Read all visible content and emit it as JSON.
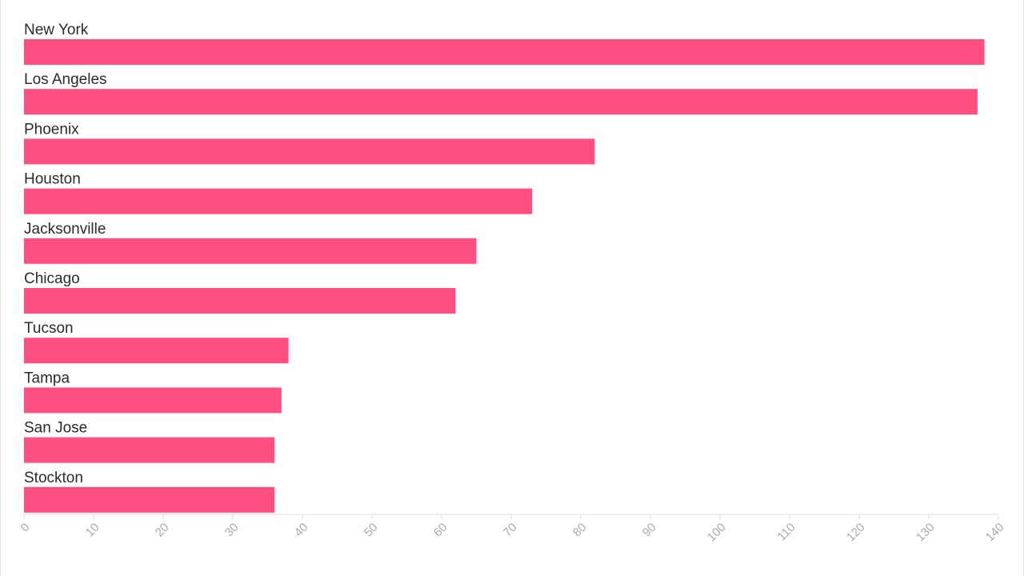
{
  "chart_data": {
    "type": "bar",
    "orientation": "horizontal",
    "categories": [
      "New York",
      "Los Angeles",
      "Phoenix",
      "Houston",
      "Jacksonville",
      "Chicago",
      "Tucson",
      "Tampa",
      "San Jose",
      "Stockton"
    ],
    "values": [
      138,
      137,
      82,
      73,
      65,
      62,
      38,
      37,
      36,
      36
    ],
    "x_ticks": [
      "0",
      "10",
      "20",
      "30",
      "40",
      "50",
      "60",
      "70",
      "80",
      "90",
      "100",
      "110",
      "120",
      "130",
      "140"
    ],
    "xlim": [
      0,
      140
    ],
    "xlabel": "",
    "ylabel": "",
    "title": "",
    "grid": false,
    "bar_color": "#ff4f81",
    "axis_color": "#dddddd",
    "tick_label_color": "#aaaaaa",
    "label_color": "#2b2b2b"
  }
}
